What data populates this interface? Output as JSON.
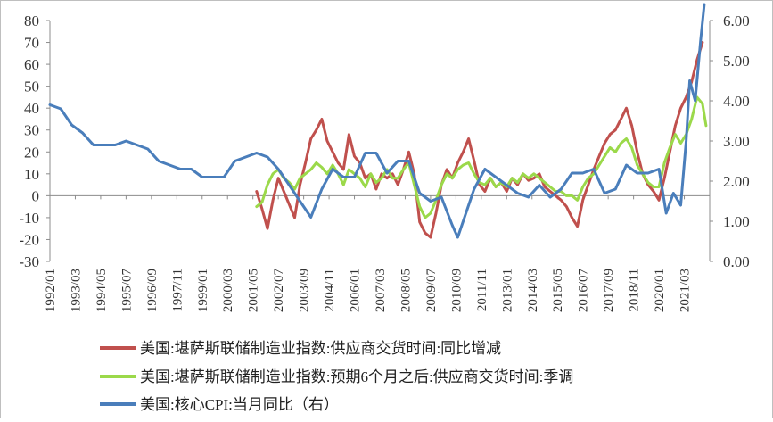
{
  "chart_data": {
    "type": "line",
    "left_axis": {
      "ylim": [
        -30,
        80
      ],
      "ticks": [
        -30,
        -20,
        -10,
        0,
        10,
        20,
        30,
        40,
        50,
        60,
        70,
        80
      ]
    },
    "right_axis": {
      "ylim": [
        0,
        6
      ],
      "tick_labels": [
        "0.00",
        "1.00",
        "2.00",
        "3.00",
        "4.00",
        "5.00",
        "6.00"
      ]
    },
    "x_range": [
      "1992/01",
      "2022/05"
    ],
    "x_tick_labels": [
      "1992/01",
      "1993/03",
      "1994/05",
      "1995/07",
      "1996/09",
      "1997/11",
      "1999/01",
      "2000/03",
      "2001/05",
      "2002/07",
      "2003/09",
      "2004/11",
      "2006/01",
      "2007/03",
      "2008/05",
      "2009/07",
      "2010/09",
      "2011/11",
      "2013/01",
      "2014/03",
      "2015/05",
      "2016/07",
      "2017/09",
      "2018/11",
      "2020/01",
      "2021/03"
    ],
    "grid": false,
    "legend_position": "bottom",
    "series": [
      {
        "name": "美国:堪萨斯联储制造业指数:供应商交货时间:同比增减",
        "axis": "left",
        "color": "#c0504d",
        "points": [
          [
            "2001/07",
            2
          ],
          [
            "2001/10",
            -6
          ],
          [
            "2002/01",
            -15
          ],
          [
            "2002/04",
            -2
          ],
          [
            "2002/07",
            8
          ],
          [
            "2002/10",
            2
          ],
          [
            "2003/01",
            -4
          ],
          [
            "2003/04",
            -10
          ],
          [
            "2003/07",
            5
          ],
          [
            "2003/10",
            15
          ],
          [
            "2004/01",
            26
          ],
          [
            "2004/04",
            30
          ],
          [
            "2004/07",
            35
          ],
          [
            "2004/10",
            25
          ],
          [
            "2005/01",
            20
          ],
          [
            "2005/04",
            15
          ],
          [
            "2005/07",
            12
          ],
          [
            "2005/10",
            28
          ],
          [
            "2006/01",
            18
          ],
          [
            "2006/04",
            15
          ],
          [
            "2006/07",
            8
          ],
          [
            "2006/10",
            10
          ],
          [
            "2007/01",
            3
          ],
          [
            "2007/04",
            10
          ],
          [
            "2007/07",
            8
          ],
          [
            "2007/10",
            10
          ],
          [
            "2008/01",
            5
          ],
          [
            "2008/04",
            12
          ],
          [
            "2008/07",
            20
          ],
          [
            "2008/10",
            10
          ],
          [
            "2009/01",
            -12
          ],
          [
            "2009/04",
            -17
          ],
          [
            "2009/07",
            -19
          ],
          [
            "2009/10",
            -8
          ],
          [
            "2010/01",
            5
          ],
          [
            "2010/04",
            12
          ],
          [
            "2010/07",
            8
          ],
          [
            "2010/10",
            15
          ],
          [
            "2011/01",
            20
          ],
          [
            "2011/04",
            26
          ],
          [
            "2011/07",
            16
          ],
          [
            "2011/10",
            5
          ],
          [
            "2012/01",
            2
          ],
          [
            "2012/04",
            8
          ],
          [
            "2012/07",
            4
          ],
          [
            "2012/10",
            6
          ],
          [
            "2013/01",
            2
          ],
          [
            "2013/04",
            8
          ],
          [
            "2013/07",
            5
          ],
          [
            "2013/10",
            10
          ],
          [
            "2014/01",
            7
          ],
          [
            "2014/04",
            8
          ],
          [
            "2014/07",
            10
          ],
          [
            "2014/10",
            4
          ],
          [
            "2015/01",
            2
          ],
          [
            "2015/04",
            0
          ],
          [
            "2015/07",
            -2
          ],
          [
            "2015/10",
            -5
          ],
          [
            "2016/01",
            -10
          ],
          [
            "2016/04",
            -14
          ],
          [
            "2016/07",
            -2
          ],
          [
            "2016/10",
            5
          ],
          [
            "2017/01",
            12
          ],
          [
            "2017/04",
            18
          ],
          [
            "2017/07",
            24
          ],
          [
            "2017/10",
            28
          ],
          [
            "2018/01",
            30
          ],
          [
            "2018/04",
            35
          ],
          [
            "2018/07",
            40
          ],
          [
            "2018/10",
            32
          ],
          [
            "2019/01",
            20
          ],
          [
            "2019/04",
            10
          ],
          [
            "2019/07",
            5
          ],
          [
            "2019/10",
            2
          ],
          [
            "2020/01",
            -2
          ],
          [
            "2020/04",
            8
          ],
          [
            "2020/07",
            20
          ],
          [
            "2020/10",
            32
          ],
          [
            "2021/01",
            40
          ],
          [
            "2021/04",
            45
          ],
          [
            "2021/07",
            52
          ],
          [
            "2021/10",
            62
          ],
          [
            "2022/01",
            70
          ]
        ]
      },
      {
        "name": "美国:堪萨斯联储制造业指数:预期6个月之后:供应商交货时间:季调",
        "axis": "left",
        "color": "#9bd94a",
        "points": [
          [
            "2001/07",
            -5
          ],
          [
            "2001/10",
            -3
          ],
          [
            "2002/01",
            5
          ],
          [
            "2002/04",
            10
          ],
          [
            "2002/07",
            12
          ],
          [
            "2002/10",
            8
          ],
          [
            "2003/01",
            6
          ],
          [
            "2003/04",
            3
          ],
          [
            "2003/07",
            8
          ],
          [
            "2003/10",
            10
          ],
          [
            "2004/01",
            12
          ],
          [
            "2004/04",
            15
          ],
          [
            "2004/07",
            13
          ],
          [
            "2004/10",
            10
          ],
          [
            "2005/01",
            14
          ],
          [
            "2005/04",
            10
          ],
          [
            "2005/07",
            5
          ],
          [
            "2005/10",
            12
          ],
          [
            "2006/01",
            10
          ],
          [
            "2006/04",
            8
          ],
          [
            "2006/07",
            4
          ],
          [
            "2006/10",
            10
          ],
          [
            "2007/01",
            6
          ],
          [
            "2007/04",
            8
          ],
          [
            "2007/07",
            12
          ],
          [
            "2007/10",
            8
          ],
          [
            "2008/01",
            8
          ],
          [
            "2008/04",
            12
          ],
          [
            "2008/07",
            15
          ],
          [
            "2008/10",
            5
          ],
          [
            "2009/01",
            -5
          ],
          [
            "2009/04",
            -10
          ],
          [
            "2009/07",
            -8
          ],
          [
            "2009/10",
            -2
          ],
          [
            "2010/01",
            5
          ],
          [
            "2010/04",
            10
          ],
          [
            "2010/07",
            8
          ],
          [
            "2010/10",
            12
          ],
          [
            "2011/01",
            14
          ],
          [
            "2011/04",
            15
          ],
          [
            "2011/07",
            10
          ],
          [
            "2011/10",
            6
          ],
          [
            "2012/01",
            5
          ],
          [
            "2012/04",
            8
          ],
          [
            "2012/07",
            4
          ],
          [
            "2012/10",
            6
          ],
          [
            "2013/01",
            4
          ],
          [
            "2013/04",
            8
          ],
          [
            "2013/07",
            6
          ],
          [
            "2013/10",
            10
          ],
          [
            "2014/01",
            8
          ],
          [
            "2014/04",
            10
          ],
          [
            "2014/07",
            8
          ],
          [
            "2014/10",
            6
          ],
          [
            "2015/01",
            4
          ],
          [
            "2015/04",
            2
          ],
          [
            "2015/07",
            2
          ],
          [
            "2015/10",
            0
          ],
          [
            "2016/01",
            0
          ],
          [
            "2016/04",
            -2
          ],
          [
            "2016/07",
            4
          ],
          [
            "2016/10",
            8
          ],
          [
            "2017/01",
            10
          ],
          [
            "2017/04",
            14
          ],
          [
            "2017/07",
            18
          ],
          [
            "2017/10",
            22
          ],
          [
            "2018/01",
            20
          ],
          [
            "2018/04",
            24
          ],
          [
            "2018/07",
            26
          ],
          [
            "2018/10",
            22
          ],
          [
            "2019/01",
            14
          ],
          [
            "2019/04",
            10
          ],
          [
            "2019/07",
            6
          ],
          [
            "2019/10",
            4
          ],
          [
            "2020/01",
            4
          ],
          [
            "2020/04",
            15
          ],
          [
            "2020/07",
            22
          ],
          [
            "2020/10",
            28
          ],
          [
            "2021/01",
            24
          ],
          [
            "2021/04",
            28
          ],
          [
            "2021/07",
            35
          ],
          [
            "2021/10",
            45
          ],
          [
            "2022/01",
            42
          ],
          [
            "2022/03",
            32
          ]
        ]
      },
      {
        "name": "美国:核心CPI:当月同比（右）",
        "axis": "right",
        "color": "#4a7ebb",
        "points": [
          [
            "1992/01",
            3.9
          ],
          [
            "1992/07",
            3.8
          ],
          [
            "1993/01",
            3.4
          ],
          [
            "1993/07",
            3.2
          ],
          [
            "1994/01",
            2.9
          ],
          [
            "1994/07",
            2.9
          ],
          [
            "1995/01",
            2.9
          ],
          [
            "1995/07",
            3.0
          ],
          [
            "1996/01",
            2.9
          ],
          [
            "1996/07",
            2.8
          ],
          [
            "1997/01",
            2.5
          ],
          [
            "1997/07",
            2.4
          ],
          [
            "1998/01",
            2.3
          ],
          [
            "1998/07",
            2.3
          ],
          [
            "1999/01",
            2.1
          ],
          [
            "1999/07",
            2.1
          ],
          [
            "2000/01",
            2.1
          ],
          [
            "2000/07",
            2.5
          ],
          [
            "2001/01",
            2.6
          ],
          [
            "2001/07",
            2.7
          ],
          [
            "2002/01",
            2.6
          ],
          [
            "2002/07",
            2.3
          ],
          [
            "2003/01",
            1.9
          ],
          [
            "2003/07",
            1.5
          ],
          [
            "2004/01",
            1.1
          ],
          [
            "2004/07",
            1.8
          ],
          [
            "2005/01",
            2.3
          ],
          [
            "2005/07",
            2.1
          ],
          [
            "2006/01",
            2.1
          ],
          [
            "2006/07",
            2.7
          ],
          [
            "2007/01",
            2.7
          ],
          [
            "2007/07",
            2.2
          ],
          [
            "2008/01",
            2.5
          ],
          [
            "2008/07",
            2.5
          ],
          [
            "2009/01",
            1.7
          ],
          [
            "2009/07",
            1.5
          ],
          [
            "2010/01",
            1.6
          ],
          [
            "2010/07",
            0.9
          ],
          [
            "2010/10",
            0.6
          ],
          [
            "2011/01",
            1.0
          ],
          [
            "2011/07",
            1.8
          ],
          [
            "2012/01",
            2.3
          ],
          [
            "2012/07",
            2.1
          ],
          [
            "2013/01",
            1.9
          ],
          [
            "2013/07",
            1.7
          ],
          [
            "2014/01",
            1.6
          ],
          [
            "2014/07",
            1.9
          ],
          [
            "2015/01",
            1.6
          ],
          [
            "2015/07",
            1.8
          ],
          [
            "2016/01",
            2.2
          ],
          [
            "2016/07",
            2.2
          ],
          [
            "2017/01",
            2.3
          ],
          [
            "2017/07",
            1.7
          ],
          [
            "2018/01",
            1.8
          ],
          [
            "2018/07",
            2.4
          ],
          [
            "2019/01",
            2.2
          ],
          [
            "2019/07",
            2.2
          ],
          [
            "2020/01",
            2.3
          ],
          [
            "2020/05",
            1.2
          ],
          [
            "2020/09",
            1.7
          ],
          [
            "2021/01",
            1.4
          ],
          [
            "2021/04",
            3.0
          ],
          [
            "2021/06",
            4.5
          ],
          [
            "2021/09",
            4.0
          ],
          [
            "2021/12",
            5.5
          ],
          [
            "2022/02",
            6.4
          ]
        ]
      }
    ]
  },
  "legend": [
    {
      "label": "美国:堪萨斯联储制造业指数:供应商交货时间:同比增减",
      "color": "#c0504d"
    },
    {
      "label": "美国:堪萨斯联储制造业指数:预期6个月之后:供应商交货时间:季调",
      "color": "#9bd94a"
    },
    {
      "label": "美国:核心CPI:当月同比（右）",
      "color": "#4a7ebb"
    }
  ]
}
